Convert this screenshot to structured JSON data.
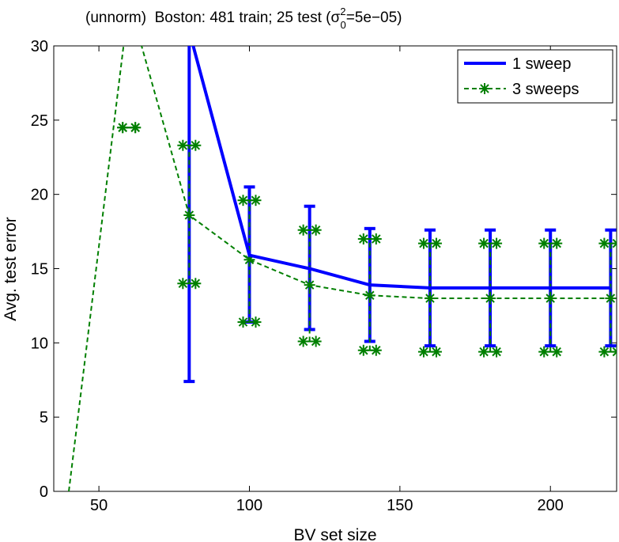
{
  "chart_data": {
    "type": "line",
    "title_prefix": "(unnorm)  Boston: 481 train; 25 test (",
    "title_sigma": "σ",
    "title_sup": "2",
    "title_sub": "0",
    "title_suffix": "=5e−05)",
    "xlabel": "BV set size",
    "ylabel": "Avg. test error",
    "xlim": [
      35,
      222
    ],
    "ylim": [
      0,
      30
    ],
    "xticks": [
      50,
      100,
      150,
      200
    ],
    "yticks": [
      0,
      5,
      10,
      15,
      20,
      25,
      30
    ],
    "legend_position": "top-right",
    "series": [
      {
        "name": "1 sweep",
        "color": "#0000ff",
        "style": "solid",
        "x": [
          80,
          100,
          120,
          140,
          160,
          180,
          200,
          220
        ],
        "y": [
          31,
          15.9,
          15.0,
          13.9,
          13.7,
          13.7,
          13.7,
          13.7
        ],
        "err_low": [
          7.4,
          11.4,
          10.9,
          10.1,
          9.8,
          9.8,
          9.8,
          9.8
        ],
        "err_high": [
          31,
          20.5,
          19.2,
          17.7,
          17.6,
          17.6,
          17.6,
          17.6
        ]
      },
      {
        "name": "3 sweeps",
        "color": "#007f00",
        "style": "dashed",
        "marker": "asterisk",
        "x": [
          40,
          60,
          80,
          100,
          120,
          140,
          160,
          180,
          200,
          220
        ],
        "y": [
          0,
          33,
          18.6,
          15.6,
          13.9,
          13.2,
          13.0,
          13.0,
          13.0,
          13.0
        ],
        "err_low": [
          null,
          24.5,
          14.0,
          11.4,
          10.1,
          9.5,
          9.4,
          9.4,
          9.4,
          9.4
        ],
        "err_high": [
          null,
          24.5,
          23.3,
          19.6,
          17.6,
          17.0,
          16.7,
          16.7,
          16.7,
          16.7
        ]
      }
    ]
  }
}
